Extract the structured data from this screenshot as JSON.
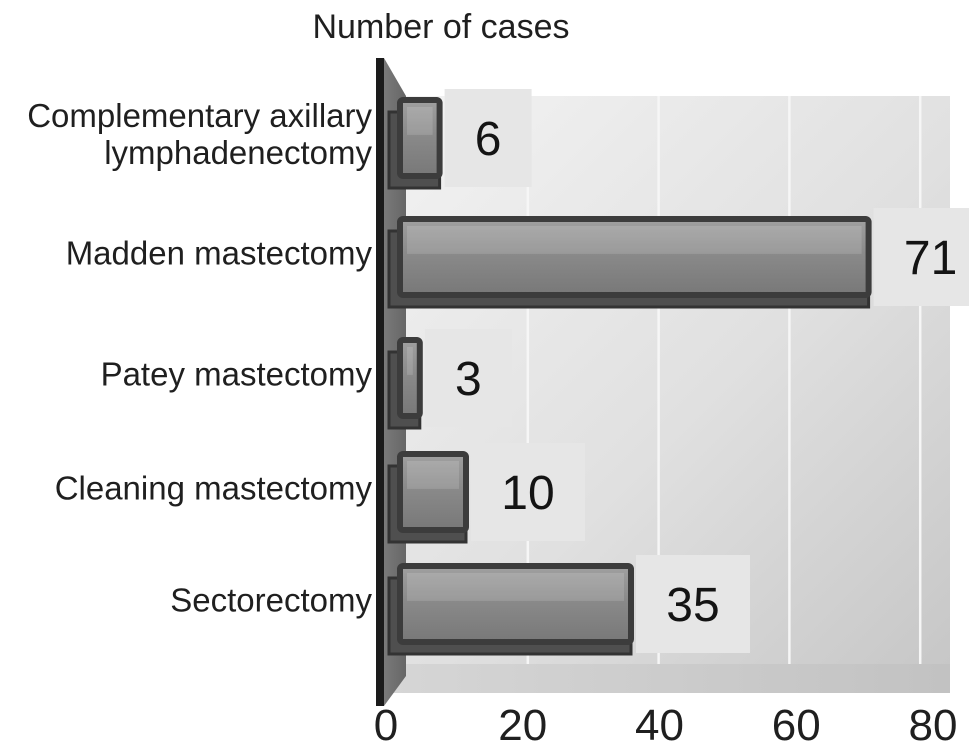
{
  "chart_data": {
    "type": "bar",
    "orientation": "horizontal",
    "title": "Number of cases",
    "categories": [
      "Complementary axillary\nlymphadenectomy",
      "Madden mastectomy",
      "Patey mastectomy",
      "Cleaning mastectomy",
      "Sectorectomy"
    ],
    "values": [
      6,
      71,
      3,
      10,
      35
    ],
    "value_labels": [
      "6",
      "71",
      "3",
      "10",
      "35"
    ],
    "x_ticks": [
      0,
      20,
      40,
      60,
      80
    ],
    "xlim": [
      0,
      80
    ],
    "xlabel": "",
    "ylabel": "",
    "grid": "vertical-light",
    "legend": "none",
    "style": "3d-gray-excel",
    "colors": {
      "bar_face": "#868686",
      "bar_face_light": "#9d9d9d",
      "bar_face_dark": "#7a7a7a",
      "bar_border": "#3c3c3c",
      "bar_bevel": "#4f4f4f",
      "axis_wall": "#6f6f6f",
      "axis_line": "#1b1b1b",
      "plot_bg_light": "#f2f2f2",
      "plot_bg_dark": "#c7c7c7",
      "floor": "#cbcbcb",
      "gridline": "#f6f6f6",
      "value_patch": "#e6e6e6",
      "text": "#1f1f1f"
    }
  }
}
